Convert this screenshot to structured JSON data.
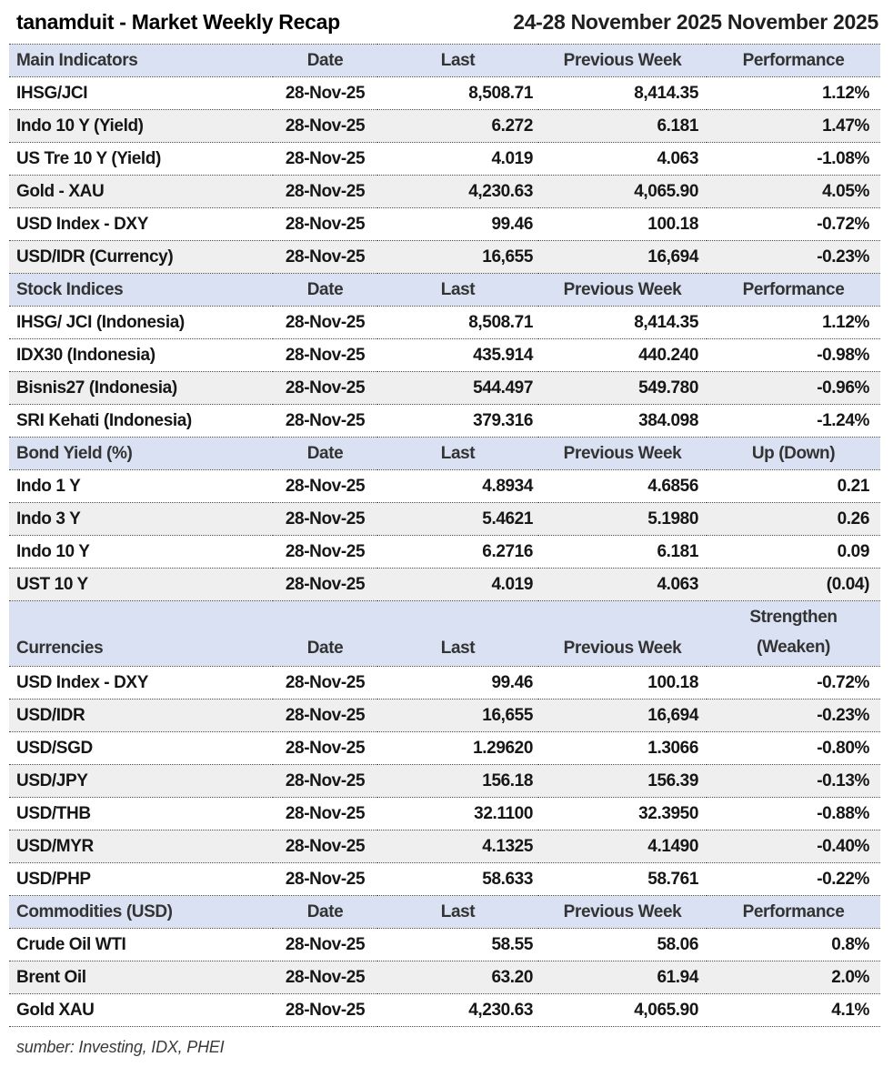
{
  "title": {
    "left": "tanamduit - Market Weekly Recap",
    "right": "24-28 November 2025 November 2025"
  },
  "colors": {
    "header_band": "#d9e1f2",
    "row_shade": "#efefef",
    "border": "#474747"
  },
  "sections": [
    {
      "id": "main-indicators",
      "header": {
        "label": "Main Indicators",
        "date": "Date",
        "last": "Last",
        "prev": "Previous Week",
        "perf": "Performance"
      },
      "rows": [
        {
          "label": "IHSG/JCI",
          "date": "28-Nov-25",
          "last": "8,508.71",
          "prev": "8,414.35",
          "perf": "1.12%",
          "shaded": false
        },
        {
          "label": "Indo 10 Y (Yield)",
          "date": "28-Nov-25",
          "last": "6.272",
          "prev": "6.181",
          "perf": "1.47%",
          "shaded": true
        },
        {
          "label": "US Tre 10 Y (Yield)",
          "date": "28-Nov-25",
          "last": "4.019",
          "prev": "4.063",
          "perf": "-1.08%",
          "shaded": false
        },
        {
          "label": "Gold - XAU",
          "date": "28-Nov-25",
          "last": "4,230.63",
          "prev": "4,065.90",
          "perf": "4.05%",
          "shaded": true
        },
        {
          "label": "USD Index - DXY",
          "date": "28-Nov-25",
          "last": "99.46",
          "prev": "100.18",
          "perf": "-0.72%",
          "shaded": false
        },
        {
          "label": "USD/IDR (Currency)",
          "date": "28-Nov-25",
          "last": "16,655",
          "prev": "16,694",
          "perf": "-0.23%",
          "shaded": true
        }
      ]
    },
    {
      "id": "stock-indices",
      "header": {
        "label": "Stock Indices",
        "date": "Date",
        "last": "Last",
        "prev": "Previous Week",
        "perf": "Performance"
      },
      "rows": [
        {
          "label": "IHSG/ JCI (Indonesia)",
          "date": "28-Nov-25",
          "last": "8,508.71",
          "prev": "8,414.35",
          "perf": "1.12%",
          "shaded": false
        },
        {
          "label": "IDX30 (Indonesia)",
          "date": "28-Nov-25",
          "last": "435.914",
          "prev": "440.240",
          "perf": "-0.98%",
          "shaded": false
        },
        {
          "label": "Bisnis27 (Indonesia)",
          "date": "28-Nov-25",
          "last": "544.497",
          "prev": "549.780",
          "perf": "-0.96%",
          "shaded": true
        },
        {
          "label": "SRI Kehati (Indonesia)",
          "date": "28-Nov-25",
          "last": "379.316",
          "prev": "384.098",
          "perf": "-1.24%",
          "shaded": false
        }
      ]
    },
    {
      "id": "bond-yield",
      "header": {
        "label": "Bond Yield (%)",
        "date": "Date",
        "last": "Last",
        "prev": "Previous Week",
        "perf": "Up (Down)"
      },
      "rows": [
        {
          "label": "Indo 1 Y",
          "date": "28-Nov-25",
          "last": "4.8934",
          "prev": "4.6856",
          "perf": "0.21",
          "shaded": false
        },
        {
          "label": "Indo 3 Y",
          "date": "28-Nov-25",
          "last": "5.4621",
          "prev": "5.1980",
          "perf": "0.26",
          "shaded": true
        },
        {
          "label": "Indo 10 Y",
          "date": "28-Nov-25",
          "last": "6.2716",
          "prev": "6.181",
          "perf": "0.09",
          "shaded": false
        },
        {
          "label": "UST 10 Y",
          "date": "28-Nov-25",
          "last": "4.019",
          "prev": "4.063",
          "perf": "(0.04)",
          "shaded": true
        }
      ]
    },
    {
      "id": "currencies",
      "two_line_header": true,
      "header": {
        "label": "Currencies",
        "date": "Date",
        "last": "Last",
        "prev": "Previous Week",
        "perf_line1": "Strengthen",
        "perf_line2": "(Weaken)"
      },
      "rows": [
        {
          "label": "USD Index - DXY",
          "date": "28-Nov-25",
          "last": "99.46",
          "prev": "100.18",
          "perf": "-0.72%",
          "shaded": false
        },
        {
          "label": "USD/IDR",
          "date": "28-Nov-25",
          "last": "16,655",
          "prev": "16,694",
          "perf": "-0.23%",
          "shaded": true
        },
        {
          "label": "USD/SGD",
          "date": "28-Nov-25",
          "last": "1.29620",
          "prev": "1.3066",
          "perf": "-0.80%",
          "shaded": false
        },
        {
          "label": "USD/JPY",
          "date": "28-Nov-25",
          "last": "156.18",
          "prev": "156.39",
          "perf": "-0.13%",
          "shaded": true
        },
        {
          "label": "USD/THB",
          "date": "28-Nov-25",
          "last": "32.1100",
          "prev": "32.3950",
          "perf": "-0.88%",
          "shaded": false
        },
        {
          "label": "USD/MYR",
          "date": "28-Nov-25",
          "last": "4.1325",
          "prev": "4.1490",
          "perf": "-0.40%",
          "shaded": true
        },
        {
          "label": "USD/PHP",
          "date": "28-Nov-25",
          "last": "58.633",
          "prev": "58.761",
          "perf": "-0.22%",
          "shaded": false
        }
      ]
    },
    {
      "id": "commodities",
      "header": {
        "label": "Commodities (USD)",
        "date": "Date",
        "last": "Last",
        "prev": "Previous Week",
        "perf": "Performance"
      },
      "rows": [
        {
          "label": "Crude Oil WTI",
          "date": "28-Nov-25",
          "last": "58.55",
          "prev": "58.06",
          "perf": "0.8%",
          "shaded": false
        },
        {
          "label": "Brent Oil",
          "date": "28-Nov-25",
          "last": "63.20",
          "prev": "61.94",
          "perf": "2.0%",
          "shaded": true
        },
        {
          "label": "Gold XAU",
          "date": "28-Nov-25",
          "last": "4,230.63",
          "prev": "4,065.90",
          "perf": "4.1%",
          "shaded": false
        }
      ]
    }
  ],
  "footer": {
    "source": "sumber: Investing, IDX, PHEI"
  }
}
